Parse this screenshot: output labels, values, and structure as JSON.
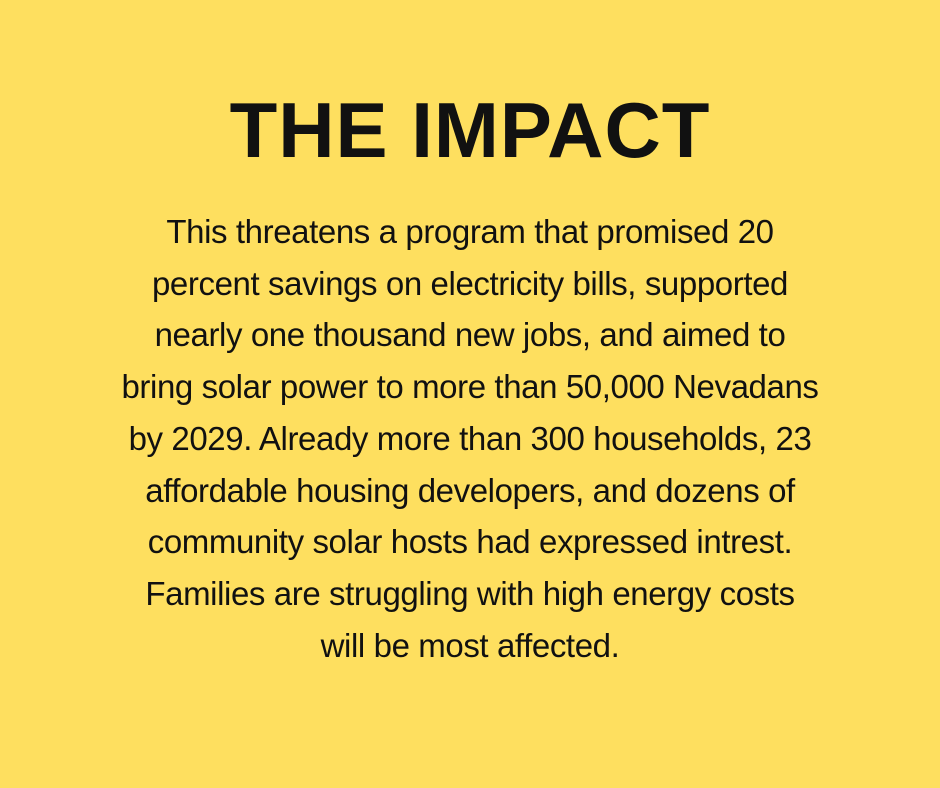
{
  "header": {
    "title": "THE IMPACT"
  },
  "body": {
    "lines": [
      "This threatens a program that promised 20",
      "percent savings on electricity bills, supported",
      "nearly one thousand new jobs, and aimed to",
      "bring solar power to more than 50,000 Nevadans",
      "by 2029. Already more than 300 households, 23",
      "affordable housing developers, and dozens of",
      "community solar hosts had expressed intrest.",
      "Families are struggling with high energy costs",
      "will be most affected."
    ]
  }
}
